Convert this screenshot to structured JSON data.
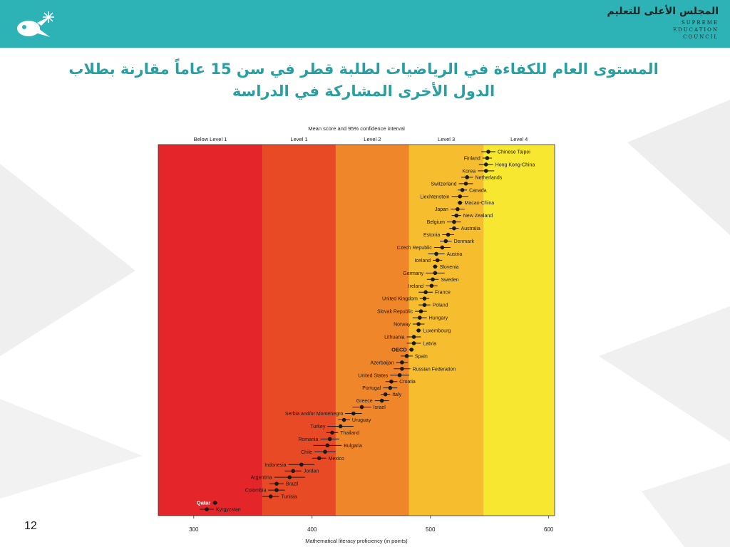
{
  "header": {
    "org_name_ar": "المجلس الأعلى للتعليم",
    "org_name_en": [
      "SUPREME",
      "EDUCATION",
      "COUNCIL"
    ]
  },
  "title": "المستوى العام للكفاءة في الرياضيات لطلبة قطر في سن 15 عاماً مقارنة بطلاب الدول الأخرى المشاركة في الدراسة",
  "page_number": "12",
  "colors": {
    "header": "#2db3b6",
    "title": "#2a9fa2",
    "bands": [
      "#e4262b",
      "#e84a26",
      "#f0862a",
      "#f6bd2e",
      "#f7e731"
    ]
  },
  "chart_data": {
    "type": "scatter",
    "title": "Mean score and 95% confidence interval",
    "xlabel": "Mathematical literacy proficiency (in points)",
    "xlim": [
      270,
      605
    ],
    "xticks": [
      300,
      400,
      500,
      600
    ],
    "bands": [
      {
        "label": "Below Level 1",
        "from": 270,
        "to": 358
      },
      {
        "label": "Level 1",
        "from": 358,
        "to": 420
      },
      {
        "label": "Level 2",
        "from": 420,
        "to": 482
      },
      {
        "label": "Level 3",
        "from": 482,
        "to": 545
      },
      {
        "label": "Level 4",
        "from": 545,
        "to": 605
      }
    ],
    "points": [
      {
        "country": "Chinese Taipei",
        "mean": 549,
        "low": 543,
        "high": 555,
        "side": "right"
      },
      {
        "country": "Finland",
        "mean": 548,
        "low": 544,
        "high": 552,
        "side": "left"
      },
      {
        "country": "Hong Kong-China",
        "mean": 547,
        "low": 541,
        "high": 553,
        "side": "right"
      },
      {
        "country": "Korea",
        "mean": 547,
        "low": 540,
        "high": 554,
        "side": "left"
      },
      {
        "country": "Netherlands",
        "mean": 531,
        "low": 526,
        "high": 536,
        "side": "right"
      },
      {
        "country": "Switzerland",
        "mean": 530,
        "low": 524,
        "high": 536,
        "side": "left"
      },
      {
        "country": "Canada",
        "mean": 527,
        "low": 523,
        "high": 531,
        "side": "right"
      },
      {
        "country": "Liechtenstein",
        "mean": 525,
        "low": 518,
        "high": 532,
        "side": "left"
      },
      {
        "country": "Macao-China",
        "mean": 525,
        "low": 523,
        "high": 527,
        "side": "right"
      },
      {
        "country": "Japan",
        "mean": 523,
        "low": 517,
        "high": 529,
        "side": "left"
      },
      {
        "country": "New Zealand",
        "mean": 522,
        "low": 518,
        "high": 526,
        "side": "right"
      },
      {
        "country": "Belgium",
        "mean": 520,
        "low": 514,
        "high": 526,
        "side": "left"
      },
      {
        "country": "Australia",
        "mean": 520,
        "low": 516,
        "high": 524,
        "side": "right"
      },
      {
        "country": "Estonia",
        "mean": 515,
        "low": 510,
        "high": 520,
        "side": "left"
      },
      {
        "country": "Denmark",
        "mean": 513,
        "low": 508,
        "high": 518,
        "side": "right"
      },
      {
        "country": "Czech Republic",
        "mean": 510,
        "low": 503,
        "high": 517,
        "side": "left"
      },
      {
        "country": "Austria",
        "mean": 505,
        "low": 498,
        "high": 512,
        "side": "right"
      },
      {
        "country": "Iceland",
        "mean": 506,
        "low": 502,
        "high": 510,
        "side": "left"
      },
      {
        "country": "Slovenia",
        "mean": 504,
        "low": 502,
        "high": 506,
        "side": "right"
      },
      {
        "country": "Germany",
        "mean": 504,
        "low": 496,
        "high": 512,
        "side": "left"
      },
      {
        "country": "Sweden",
        "mean": 502,
        "low": 497,
        "high": 507,
        "side": "right"
      },
      {
        "country": "Ireland",
        "mean": 501,
        "low": 496,
        "high": 506,
        "side": "left"
      },
      {
        "country": "France",
        "mean": 496,
        "low": 490,
        "high": 502,
        "side": "right"
      },
      {
        "country": "United Kingdom",
        "mean": 495,
        "low": 491,
        "high": 499,
        "side": "left"
      },
      {
        "country": "Poland",
        "mean": 495,
        "low": 490,
        "high": 500,
        "side": "right"
      },
      {
        "country": "Slovak Republic",
        "mean": 492,
        "low": 487,
        "high": 497,
        "side": "left"
      },
      {
        "country": "Hungary",
        "mean": 491,
        "low": 485,
        "high": 497,
        "side": "right"
      },
      {
        "country": "Norway",
        "mean": 490,
        "low": 485,
        "high": 495,
        "side": "left"
      },
      {
        "country": "Luxembourg",
        "mean": 490,
        "low": 488,
        "high": 492,
        "side": "right"
      },
      {
        "country": "Lithuania",
        "mean": 486,
        "low": 480,
        "high": 492,
        "side": "left"
      },
      {
        "country": "Latvia",
        "mean": 486,
        "low": 480,
        "high": 492,
        "side": "right"
      },
      {
        "country": "OECD",
        "mean": 484,
        "low": 482,
        "high": 486,
        "side": "left",
        "bold": true
      },
      {
        "country": "Spain",
        "mean": 480,
        "low": 475,
        "high": 485,
        "side": "right"
      },
      {
        "country": "Azerbaijan",
        "mean": 476,
        "low": 471,
        "high": 481,
        "side": "left"
      },
      {
        "country": "Russian Federation",
        "mean": 476,
        "low": 469,
        "high": 483,
        "side": "right"
      },
      {
        "country": "United States",
        "mean": 474,
        "low": 466,
        "high": 482,
        "side": "left"
      },
      {
        "country": "Croatia",
        "mean": 467,
        "low": 462,
        "high": 472,
        "side": "right"
      },
      {
        "country": "Portugal",
        "mean": 466,
        "low": 460,
        "high": 472,
        "side": "left"
      },
      {
        "country": "Italy",
        "mean": 462,
        "low": 458,
        "high": 466,
        "side": "right"
      },
      {
        "country": "Greece",
        "mean": 459,
        "low": 453,
        "high": 465,
        "side": "left"
      },
      {
        "country": "Israel",
        "mean": 442,
        "low": 434,
        "high": 450,
        "side": "right"
      },
      {
        "country": "Serbia and/or Montenegro",
        "mean": 435,
        "low": 428,
        "high": 442,
        "side": "left"
      },
      {
        "country": "Uruguay",
        "mean": 427,
        "low": 422,
        "high": 432,
        "side": "right"
      },
      {
        "country": "Turkey",
        "mean": 424,
        "low": 413,
        "high": 435,
        "side": "left"
      },
      {
        "country": "Thailand",
        "mean": 417,
        "low": 412,
        "high": 422,
        "side": "right"
      },
      {
        "country": "Romania",
        "mean": 415,
        "low": 407,
        "high": 423,
        "side": "left"
      },
      {
        "country": "Bulgaria",
        "mean": 413,
        "low": 401,
        "high": 425,
        "side": "right"
      },
      {
        "country": "Chile",
        "mean": 411,
        "low": 402,
        "high": 420,
        "side": "left"
      },
      {
        "country": "Mexico",
        "mean": 406,
        "low": 400,
        "high": 412,
        "side": "right"
      },
      {
        "country": "Indonesia",
        "mean": 391,
        "low": 380,
        "high": 402,
        "side": "left"
      },
      {
        "country": "Jordan",
        "mean": 384,
        "low": 377,
        "high": 391,
        "side": "right"
      },
      {
        "country": "Argentina",
        "mean": 381,
        "low": 368,
        "high": 394,
        "side": "left"
      },
      {
        "country": "Brazil",
        "mean": 370,
        "low": 364,
        "high": 376,
        "side": "right"
      },
      {
        "country": "Colombia",
        "mean": 370,
        "low": 363,
        "high": 377,
        "side": "left"
      },
      {
        "country": "Tunisia",
        "mean": 365,
        "low": 358,
        "high": 372,
        "side": "right"
      },
      {
        "country": "Qatar",
        "mean": 318,
        "low": 316,
        "high": 320,
        "side": "left",
        "bold": true,
        "highlight": true
      },
      {
        "country": "Kyrgyzstan",
        "mean": 311,
        "low": 305,
        "high": 317,
        "side": "right"
      }
    ]
  }
}
